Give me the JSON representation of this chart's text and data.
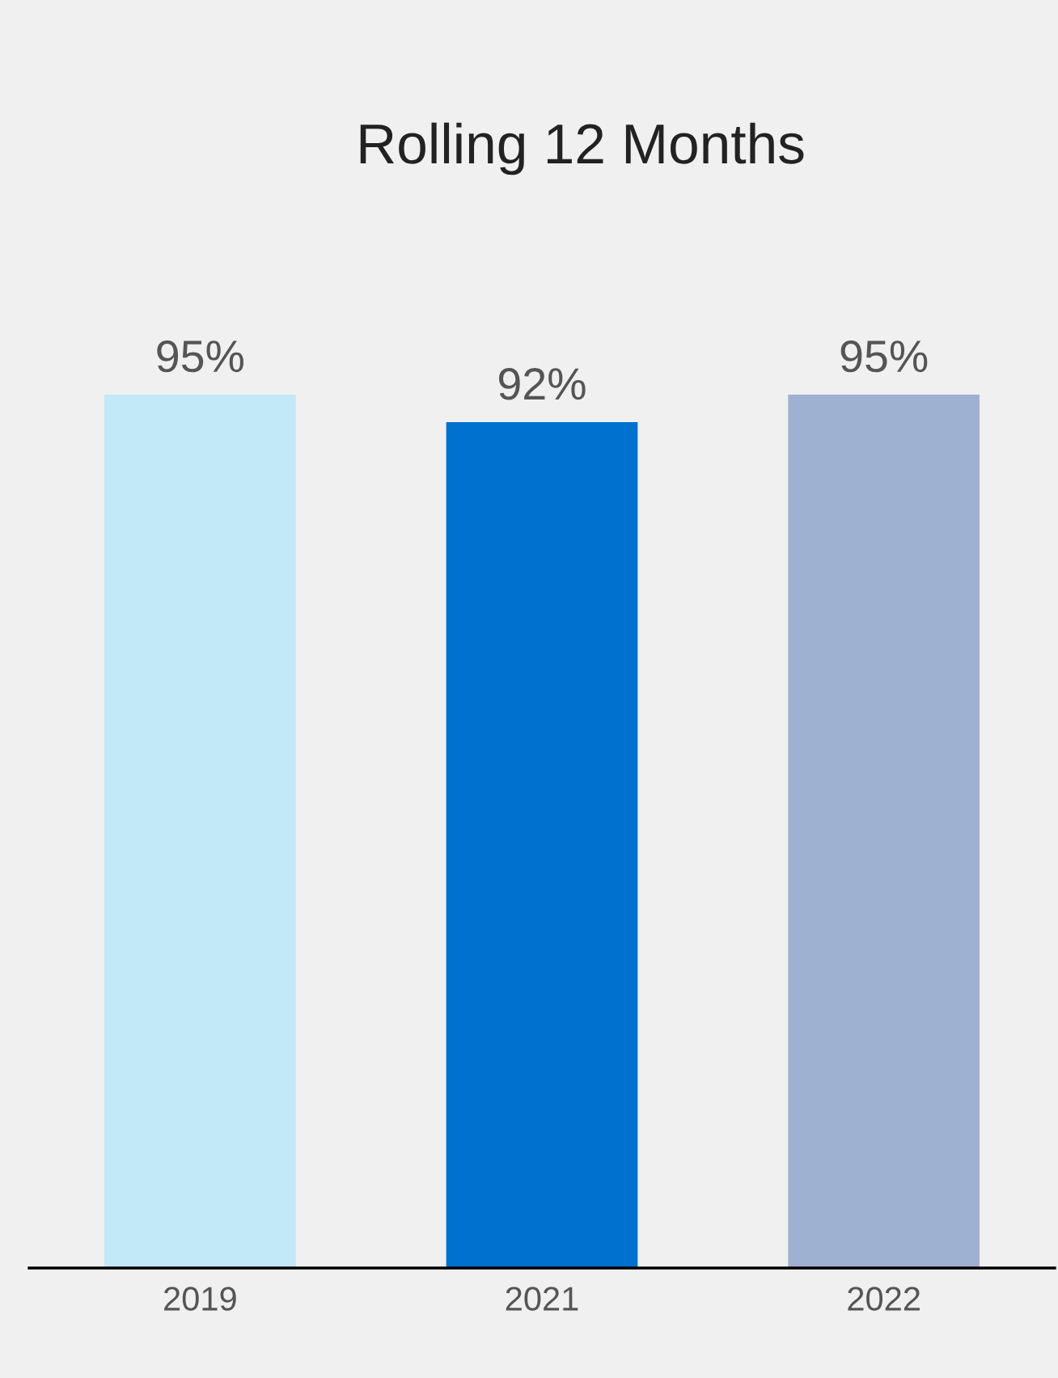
{
  "chart_data": {
    "type": "bar",
    "title": "Rolling 12 Months",
    "categories": [
      "2019",
      "2021",
      "2022"
    ],
    "values": [
      95,
      92,
      95
    ],
    "colors": [
      "#c2e9f7",
      "#0071ce",
      "#9fb1d0"
    ],
    "value_labels": [
      "95%",
      "92%",
      "95%"
    ],
    "tick_labels": "x",
    "grid": false,
    "legend": false
  }
}
